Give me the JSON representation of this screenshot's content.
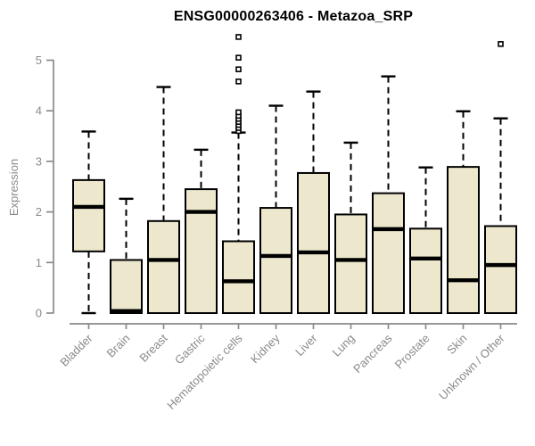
{
  "chart_data": {
    "type": "boxplot",
    "title": "ENSG00000263406 - Metazoa_SRP",
    "ylabel": "Expression",
    "xlabel": "",
    "ylim": [
      0,
      5
    ],
    "yticks": [
      0,
      1,
      2,
      3,
      4,
      5
    ],
    "grid": false,
    "legend": "none",
    "categories": [
      "Bladder",
      "Brain",
      "Breast",
      "Gastric",
      "Hematopoietic cells",
      "Kidney",
      "Liver",
      "Lung",
      "Pancreas",
      "Prostate",
      "Skin",
      "Unknown / Other"
    ],
    "boxes": [
      {
        "category": "Bladder",
        "whisker_low": 0,
        "q1": 1.22,
        "median": 2.1,
        "q3": 2.63,
        "whisker_high": 3.59,
        "outliers": []
      },
      {
        "category": "Brain",
        "whisker_low": 0,
        "q1": 0,
        "median": 0.04,
        "q3": 1.05,
        "whisker_high": 2.26,
        "outliers": []
      },
      {
        "category": "Breast",
        "whisker_low": 0,
        "q1": 0,
        "median": 1.05,
        "q3": 1.82,
        "whisker_high": 4.47,
        "outliers": []
      },
      {
        "category": "Gastric",
        "whisker_low": 0,
        "q1": 0,
        "median": 2.0,
        "q3": 2.45,
        "whisker_high": 3.23,
        "outliers": []
      },
      {
        "category": "Hematopoietic cells",
        "whisker_low": 0,
        "q1": 0,
        "median": 0.63,
        "q3": 1.42,
        "whisker_high": 3.57,
        "outliers": [
          3.6,
          3.66,
          3.72,
          3.78,
          3.84,
          3.9,
          3.97,
          4.58,
          4.82,
          5.05,
          5.46
        ]
      },
      {
        "category": "Kidney",
        "whisker_low": 0,
        "q1": 0,
        "median": 1.13,
        "q3": 2.08,
        "whisker_high": 4.1,
        "outliers": []
      },
      {
        "category": "Liver",
        "whisker_low": 0,
        "q1": 0,
        "median": 1.2,
        "q3": 2.77,
        "whisker_high": 4.38,
        "outliers": []
      },
      {
        "category": "Lung",
        "whisker_low": 0,
        "q1": 0,
        "median": 1.05,
        "q3": 1.95,
        "whisker_high": 3.37,
        "outliers": []
      },
      {
        "category": "Pancreas",
        "whisker_low": 0,
        "q1": 0,
        "median": 1.66,
        "q3": 2.37,
        "whisker_high": 4.68,
        "outliers": []
      },
      {
        "category": "Prostate",
        "whisker_low": 0,
        "q1": 0,
        "median": 1.08,
        "q3": 1.67,
        "whisker_high": 2.88,
        "outliers": []
      },
      {
        "category": "Skin",
        "whisker_low": 0,
        "q1": 0,
        "median": 0.65,
        "q3": 2.89,
        "whisker_high": 3.99,
        "outliers": []
      },
      {
        "category": "Unknown / Other",
        "whisker_low": 0,
        "q1": 0,
        "median": 0.95,
        "q3": 1.72,
        "whisker_high": 3.85,
        "outliers": [
          5.32
        ]
      }
    ],
    "colors": {
      "box_fill": "#EDE8CD",
      "box_stroke": "#000000",
      "median": "#000000",
      "whisker": "#000000",
      "outlier_stroke": "#000000",
      "outlier_fill": "#ffffff",
      "axis": "#8a8a8a",
      "tick_label": "#8a8a8a",
      "title": "#000000",
      "background": "#ffffff"
    }
  }
}
